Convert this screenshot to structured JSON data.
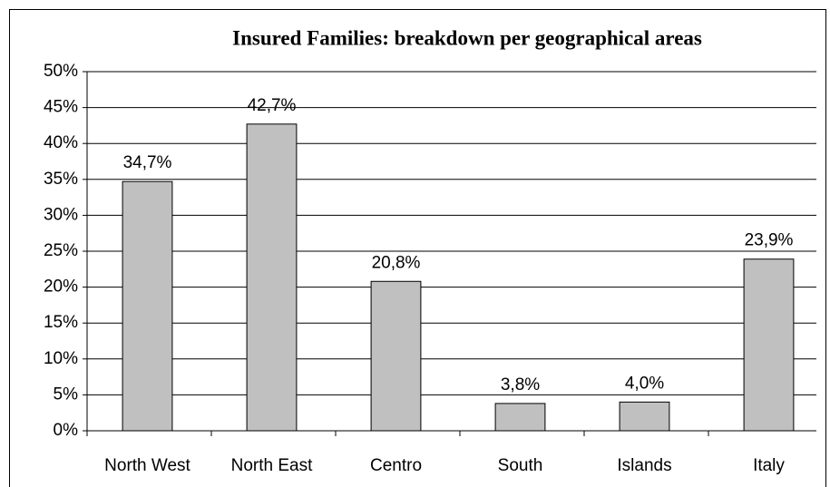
{
  "chart_data": {
    "type": "bar",
    "title": "Insured Families:  breakdown per geographical areas",
    "categories": [
      "North West",
      "North East",
      "Centro",
      "South",
      "Islands",
      "Italy"
    ],
    "values": [
      34.7,
      42.7,
      20.8,
      3.8,
      4.0,
      23.9
    ],
    "value_labels": [
      "34,7%",
      "42,7%",
      "20,8%",
      "3,8%",
      "4,0%",
      "23,9%"
    ],
    "color": "#c0c0c0",
    "ylim": [
      0,
      50
    ],
    "yticks": [
      {
        "value": 0,
        "label": "0%"
      },
      {
        "value": 5,
        "label": "5%"
      },
      {
        "value": 10,
        "label": "10%"
      },
      {
        "value": 15,
        "label": "15%"
      },
      {
        "value": 20,
        "label": "20%"
      },
      {
        "value": 25,
        "label": "25%"
      },
      {
        "value": 30,
        "label": "30%"
      },
      {
        "value": 35,
        "label": "35%"
      },
      {
        "value": 40,
        "label": "40%"
      },
      {
        "value": 45,
        "label": "45%"
      },
      {
        "value": 50,
        "label": "50%"
      }
    ],
    "grid": true
  }
}
